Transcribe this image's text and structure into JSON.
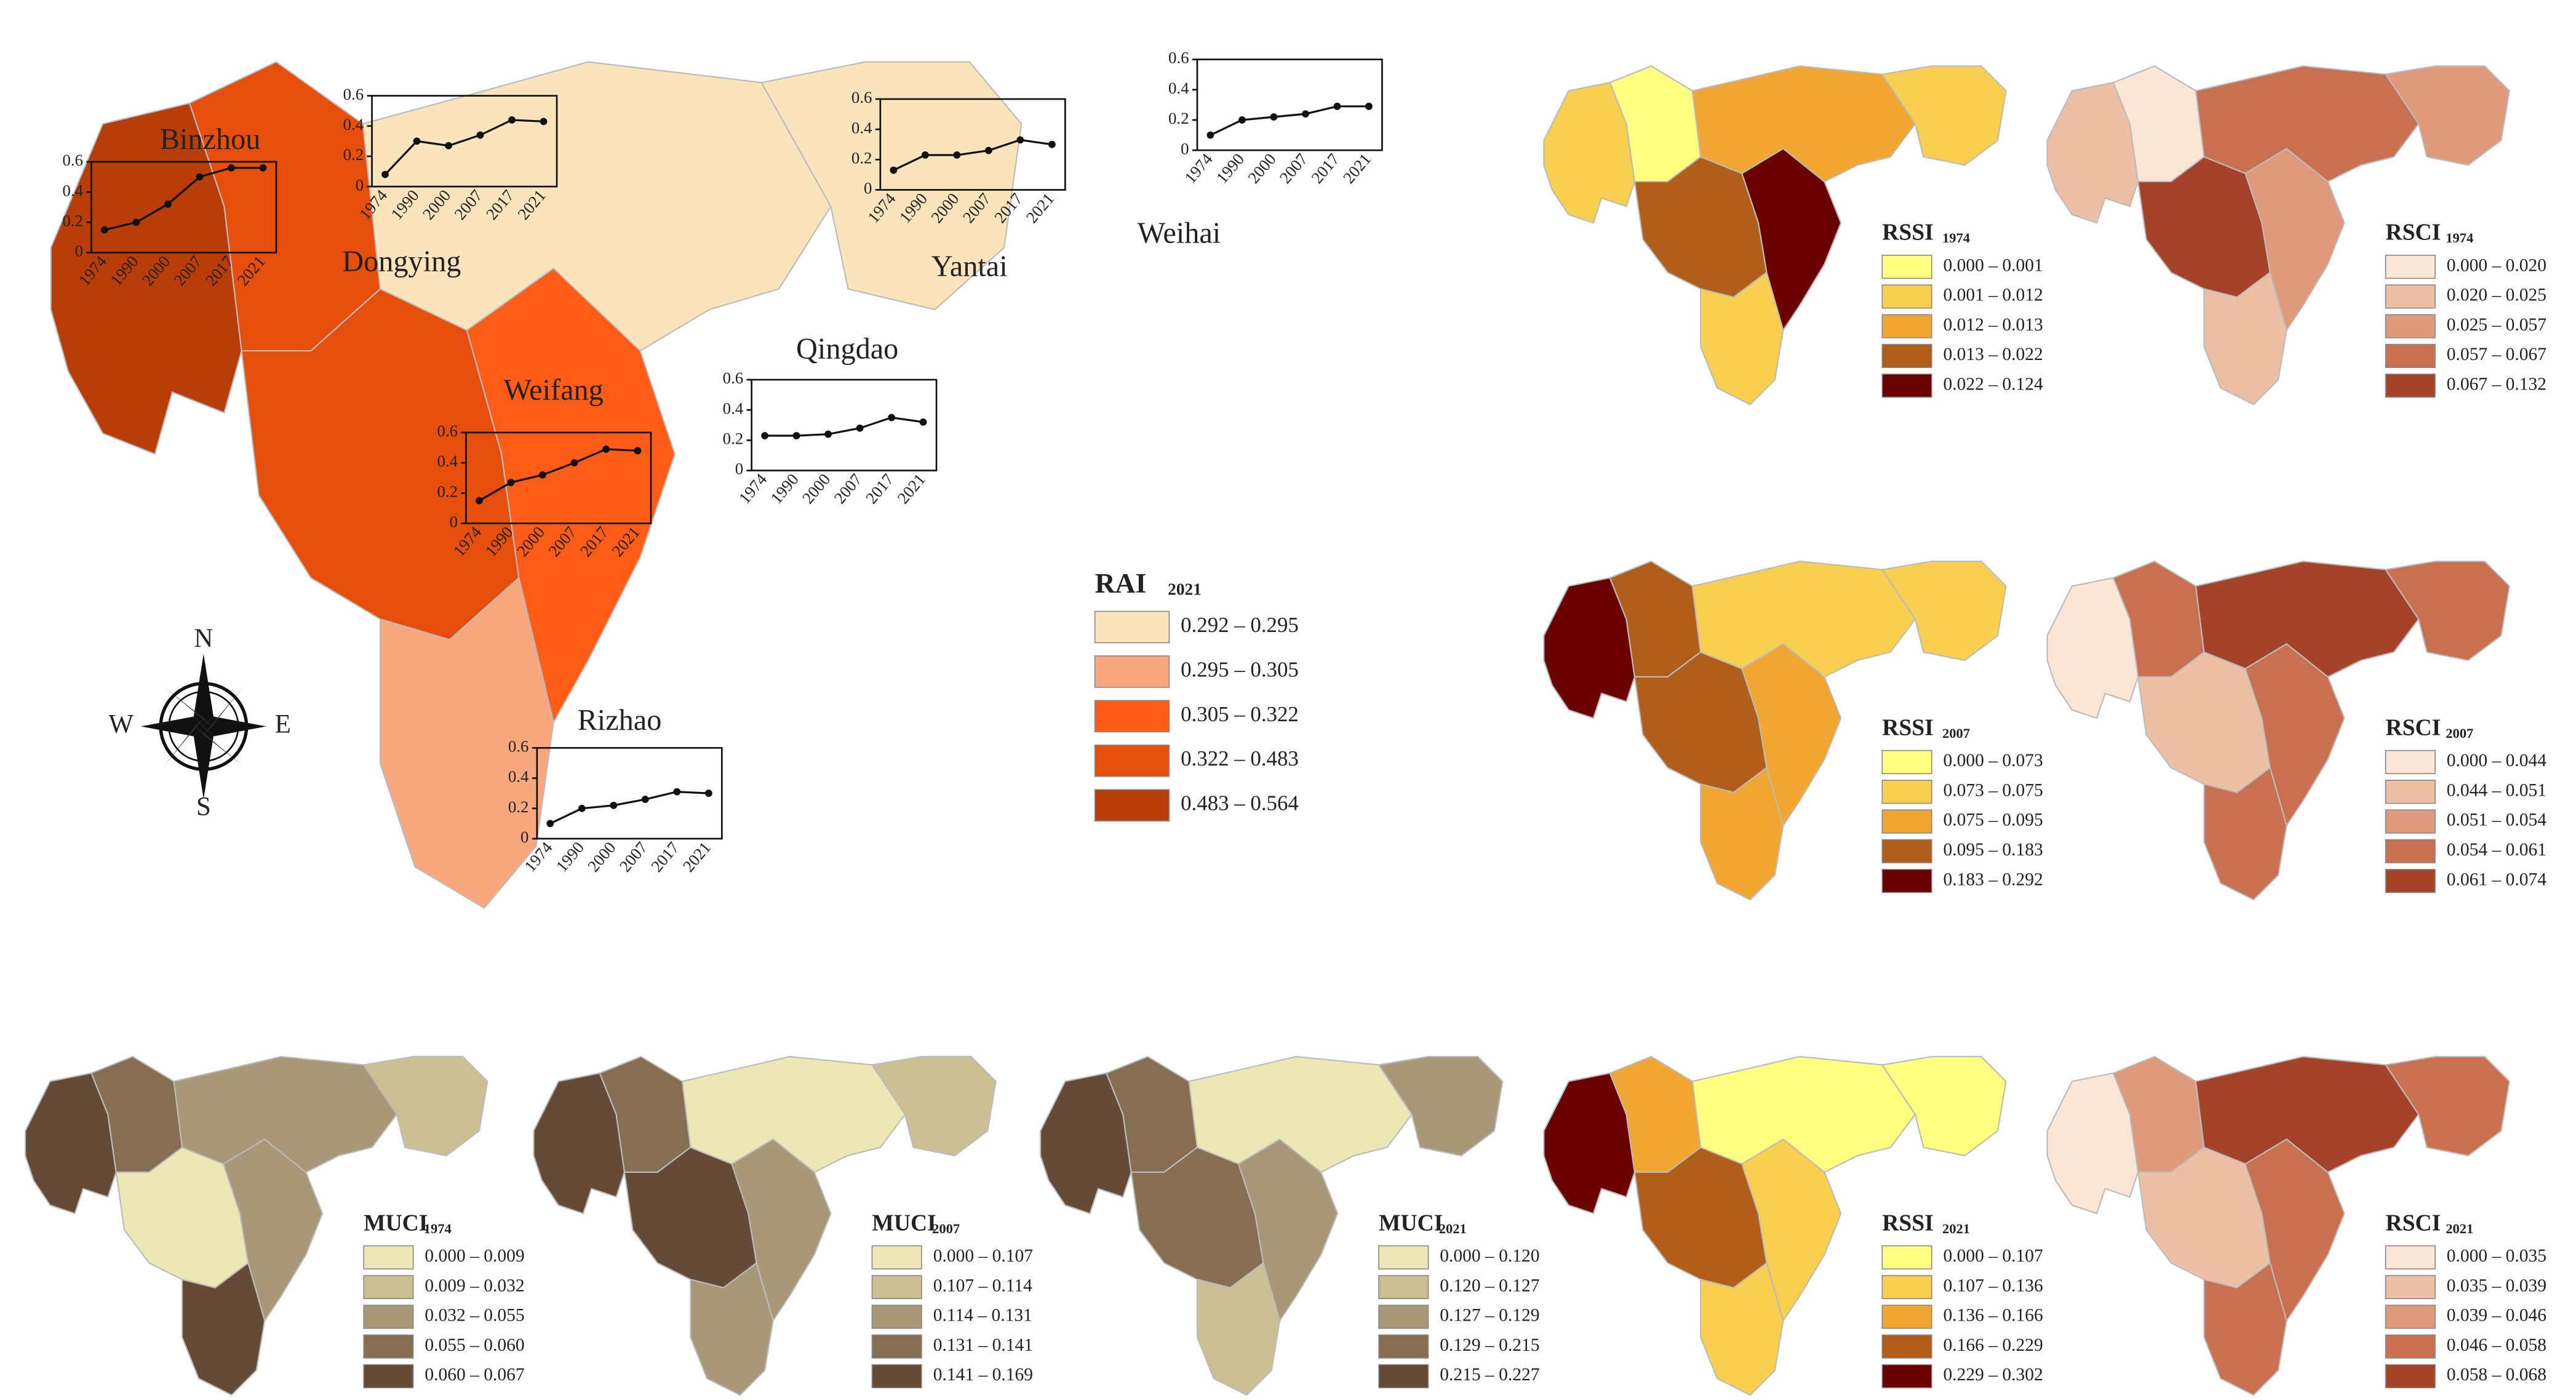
{
  "regions": [
    "Binzhou",
    "Dongying",
    "Weifang",
    "Qingdao",
    "Yantai",
    "Weihai",
    "Rizhao"
  ],
  "main_map": {
    "title": "RAI",
    "title_sub": "2021",
    "legend": [
      {
        "label": "0.292 – 0.295",
        "color": "#fbe3bb"
      },
      {
        "label": "0.295 – 0.305",
        "color": "#f9a87e"
      },
      {
        "label": "0.305 – 0.322",
        "color": "#fe5c17"
      },
      {
        "label": "0.322 – 0.483",
        "color": "#e64e0c"
      },
      {
        "label": "0.483 – 0.564",
        "color": "#b83d08"
      }
    ],
    "fills": [
      "#b83d08",
      "#e64e0c",
      "#e64e0c",
      "#fe5c17",
      "#fbe3bb",
      "#fbe3bb",
      "#f9a87e"
    ],
    "compass": {
      "n": "N",
      "e": "E",
      "s": "S",
      "w": "W"
    },
    "trend_x": [
      "1974",
      "1990",
      "2000",
      "2007",
      "2017",
      "2021"
    ],
    "trend_ylim": [
      0,
      0.6
    ],
    "trend_yticks": [
      0,
      0.2,
      0.4,
      0.6
    ],
    "trends": [
      {
        "name": "Binzhou",
        "values": [
          0.15,
          0.2,
          0.32,
          0.5,
          0.56,
          0.56
        ]
      },
      {
        "name": "Dongying",
        "values": [
          0.08,
          0.3,
          0.27,
          0.34,
          0.44,
          0.43
        ]
      },
      {
        "name": "Weifang",
        "values": [
          0.15,
          0.27,
          0.32,
          0.4,
          0.49,
          0.48
        ]
      },
      {
        "name": "Qingdao",
        "values": [
          0.23,
          0.23,
          0.24,
          0.28,
          0.35,
          0.32
        ]
      },
      {
        "name": "Yantai",
        "values": [
          0.13,
          0.23,
          0.23,
          0.26,
          0.33,
          0.3
        ]
      },
      {
        "name": "Weihai",
        "values": [
          0.1,
          0.2,
          0.22,
          0.24,
          0.29,
          0.29
        ]
      },
      {
        "name": "Rizhao",
        "values": [
          0.1,
          0.2,
          0.22,
          0.26,
          0.31,
          0.3
        ]
      }
    ]
  },
  "maps": [
    {
      "title": "RSSI",
      "title_sub": "1974",
      "legend": [
        {
          "label": "0.000 – 0.001",
          "color": "#ffff80"
        },
        {
          "label": "0.001 – 0.012",
          "color": "#f8cf4e"
        },
        {
          "label": "0.012 – 0.013",
          "color": "#f0a630"
        },
        {
          "label": "0.013 – 0.022",
          "color": "#b05e1a"
        },
        {
          "label": "0.022 – 0.124",
          "color": "#6b0000"
        }
      ],
      "fills": [
        "#f8cf4e",
        "#ffff80",
        "#b05e1a",
        "#6b0000",
        "#f0a630",
        "#f8cf4e",
        "#f8cf4e"
      ]
    },
    {
      "title": "RSCI",
      "title_sub": "1974",
      "legend": [
        {
          "label": "0.000 – 0.020",
          "color": "#fbe6d5"
        },
        {
          "label": "0.020 – 0.025",
          "color": "#edc0a6"
        },
        {
          "label": "0.025 – 0.057",
          "color": "#de9a7a"
        },
        {
          "label": "0.057 – 0.067",
          "color": "#c8704f"
        },
        {
          "label": "0.067 – 0.132",
          "color": "#a5432a"
        }
      ],
      "fills": [
        "#edc0a6",
        "#fbe6d5",
        "#a5432a",
        "#de9a7a",
        "#c8704f",
        "#de9a7a",
        "#edc0a6"
      ]
    },
    {
      "title": "RSSI",
      "title_sub": "2007",
      "legend": [
        {
          "label": "0.000 – 0.073",
          "color": "#ffff80"
        },
        {
          "label": "0.073 – 0.075",
          "color": "#f8cf4e"
        },
        {
          "label": "0.075 – 0.095",
          "color": "#f0a630"
        },
        {
          "label": "0.095 – 0.183",
          "color": "#b05e1a"
        },
        {
          "label": "0.183 – 0.292",
          "color": "#6b0000"
        }
      ],
      "fills": [
        "#6b0000",
        "#b05e1a",
        "#b05e1a",
        "#f0a630",
        "#f8cf4e",
        "#f8cf4e",
        "#f0a630"
      ]
    },
    {
      "title": "RSCI",
      "title_sub": "2007",
      "legend": [
        {
          "label": "0.000 – 0.044",
          "color": "#fbe6d5"
        },
        {
          "label": "0.044 – 0.051",
          "color": "#edc0a6"
        },
        {
          "label": "0.051 – 0.054",
          "color": "#de9a7a"
        },
        {
          "label": "0.054 – 0.061",
          "color": "#c8704f"
        },
        {
          "label": "0.061 – 0.074",
          "color": "#a5432a"
        }
      ],
      "fills": [
        "#fbe6d5",
        "#c8704f",
        "#edc0a6",
        "#c8704f",
        "#a5432a",
        "#c8704f",
        "#c8704f"
      ]
    },
    {
      "title": "MUCI",
      "title_sub": "1974",
      "legend": [
        {
          "label": "0.000 – 0.009",
          "color": "#ede7b5"
        },
        {
          "label": "0.009 – 0.032",
          "color": "#cbbf93"
        },
        {
          "label": "0.032 – 0.055",
          "color": "#a89877"
        },
        {
          "label": "0.055 – 0.060",
          "color": "#876e52"
        },
        {
          "label": "0.060 – 0.067",
          "color": "#654a35"
        }
      ],
      "fills": [
        "#654a35",
        "#876e52",
        "#ede7b5",
        "#a89877",
        "#a89877",
        "#cbbf93",
        "#654a35"
      ]
    },
    {
      "title": "MUCI",
      "title_sub": "2007",
      "legend": [
        {
          "label": "0.000 – 0.107",
          "color": "#ede7b5"
        },
        {
          "label": "0.107 – 0.114",
          "color": "#cbbf93"
        },
        {
          "label": "0.114 – 0.131",
          "color": "#a89877"
        },
        {
          "label": "0.131 – 0.141",
          "color": "#876e52"
        },
        {
          "label": "0.141 – 0.169",
          "color": "#654a35"
        }
      ],
      "fills": [
        "#654a35",
        "#876e52",
        "#654a35",
        "#a89877",
        "#ede7b5",
        "#cbbf93",
        "#a89877"
      ]
    },
    {
      "title": "MUCI",
      "title_sub": "2021",
      "legend": [
        {
          "label": "0.000 – 0.120",
          "color": "#ede7b5"
        },
        {
          "label": "0.120 – 0.127",
          "color": "#cbbf93"
        },
        {
          "label": "0.127 – 0.129",
          "color": "#a89877"
        },
        {
          "label": "0.129 – 0.215",
          "color": "#876e52"
        },
        {
          "label": "0.215 – 0.227",
          "color": "#654a35"
        }
      ],
      "fills": [
        "#654a35",
        "#876e52",
        "#876e52",
        "#a89877",
        "#ede7b5",
        "#a89877",
        "#cbbf93"
      ]
    },
    {
      "title": "RSSI",
      "title_sub": "2021",
      "legend": [
        {
          "label": "0.000 – 0.107",
          "color": "#ffff80"
        },
        {
          "label": "0.107 – 0.136",
          "color": "#f8cf4e"
        },
        {
          "label": "0.136 – 0.166",
          "color": "#f0a630"
        },
        {
          "label": "0.166 – 0.229",
          "color": "#b05e1a"
        },
        {
          "label": "0.229 – 0.302",
          "color": "#6b0000"
        }
      ],
      "fills": [
        "#6b0000",
        "#f0a630",
        "#b05e1a",
        "#f8cf4e",
        "#ffff80",
        "#ffff80",
        "#f8cf4e"
      ]
    },
    {
      "title": "RSCI",
      "title_sub": "2021",
      "legend": [
        {
          "label": "0.000 – 0.035",
          "color": "#fbe6d5"
        },
        {
          "label": "0.035 – 0.039",
          "color": "#edc0a6"
        },
        {
          "label": "0.039 – 0.046",
          "color": "#de9a7a"
        },
        {
          "label": "0.046 – 0.058",
          "color": "#c8704f"
        },
        {
          "label": "0.058 – 0.068",
          "color": "#a5432a"
        }
      ],
      "fills": [
        "#fbe6d5",
        "#de9a7a",
        "#edc0a6",
        "#c8704f",
        "#a5432a",
        "#c8704f",
        "#c8704f"
      ]
    }
  ]
}
